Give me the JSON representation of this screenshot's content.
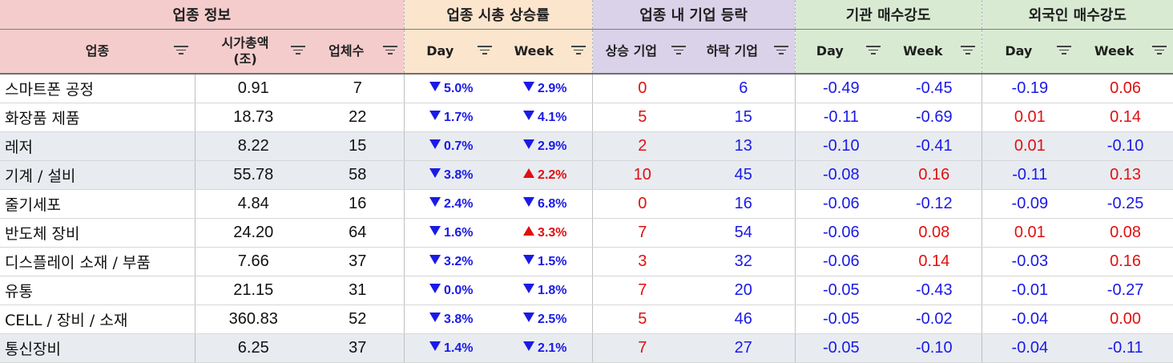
{
  "groups": {
    "info": "업종 정보",
    "mcap_change": "업종 시총 상승률",
    "companies": "업종 내 기업 등락",
    "institution": "기관 매수강도",
    "foreign": "외국인 매수강도"
  },
  "columns": {
    "sector": "업종",
    "mcap_line1": "시가총액",
    "mcap_line2": "(조)",
    "count": "업체수",
    "day": "Day",
    "week": "Week",
    "up": "상승 기업",
    "down": "하락 기업",
    "inst_day": "Day",
    "inst_week": "Week",
    "frgn_day": "Day",
    "frgn_week": "Week"
  },
  "colors": {
    "header_info": "#f4cccc",
    "header_mcap": "#fce5cd",
    "header_companies": "#d9d2e9",
    "header_institution": "#d9ead3",
    "header_foreign": "#d9ead3",
    "positive": "#e01010",
    "negative": "#1a1ae6",
    "alt_row": "#e8ecf1"
  },
  "rows": [
    {
      "sector": "스마트폰 공정",
      "mcap": "0.91",
      "count": "7",
      "day": "5.0%",
      "day_dir": "down",
      "week": "2.9%",
      "week_dir": "down",
      "up": "0",
      "down": "6",
      "inst_day": "-0.49",
      "inst_week": "-0.45",
      "frgn_day": "-0.19",
      "frgn_week": "0.06"
    },
    {
      "sector": "화장품 제품",
      "mcap": "18.73",
      "count": "22",
      "day": "1.7%",
      "day_dir": "down",
      "week": "4.1%",
      "week_dir": "down",
      "up": "5",
      "down": "15",
      "inst_day": "-0.11",
      "inst_week": "-0.69",
      "frgn_day": "0.01",
      "frgn_week": "0.14"
    },
    {
      "sector": "레저",
      "mcap": "8.22",
      "count": "15",
      "day": "0.7%",
      "day_dir": "down",
      "week": "2.9%",
      "week_dir": "down",
      "up": "2",
      "down": "13",
      "inst_day": "-0.10",
      "inst_week": "-0.41",
      "frgn_day": "0.01",
      "frgn_week": "-0.10"
    },
    {
      "sector": "기계 / 설비",
      "mcap": "55.78",
      "count": "58",
      "day": "3.8%",
      "day_dir": "down",
      "week": "2.2%",
      "week_dir": "up",
      "up": "10",
      "down": "45",
      "inst_day": "-0.08",
      "inst_week": "0.16",
      "frgn_day": "-0.11",
      "frgn_week": "0.13"
    },
    {
      "sector": "줄기세포",
      "mcap": "4.84",
      "count": "16",
      "day": "2.4%",
      "day_dir": "down",
      "week": "6.8%",
      "week_dir": "down",
      "up": "0",
      "down": "16",
      "inst_day": "-0.06",
      "inst_week": "-0.12",
      "frgn_day": "-0.09",
      "frgn_week": "-0.25"
    },
    {
      "sector": "반도체 장비",
      "mcap": "24.20",
      "count": "64",
      "day": "1.6%",
      "day_dir": "down",
      "week": "3.3%",
      "week_dir": "up",
      "up": "7",
      "down": "54",
      "inst_day": "-0.06",
      "inst_week": "0.08",
      "frgn_day": "0.01",
      "frgn_week": "0.08"
    },
    {
      "sector": "디스플레이 소재 / 부품",
      "mcap": "7.66",
      "count": "37",
      "day": "3.2%",
      "day_dir": "down",
      "week": "1.5%",
      "week_dir": "down",
      "up": "3",
      "down": "32",
      "inst_day": "-0.06",
      "inst_week": "0.14",
      "frgn_day": "-0.03",
      "frgn_week": "0.16"
    },
    {
      "sector": "유통",
      "mcap": "21.15",
      "count": "31",
      "day": "0.0%",
      "day_dir": "down",
      "week": "1.8%",
      "week_dir": "down",
      "up": "7",
      "down": "20",
      "inst_day": "-0.05",
      "inst_week": "-0.43",
      "frgn_day": "-0.01",
      "frgn_week": "-0.27"
    },
    {
      "sector": "CELL / 장비 / 소재",
      "mcap": "360.83",
      "count": "52",
      "day": "3.8%",
      "day_dir": "down",
      "week": "2.5%",
      "week_dir": "down",
      "up": "5",
      "down": "46",
      "inst_day": "-0.05",
      "inst_week": "-0.02",
      "frgn_day": "-0.04",
      "frgn_week": "0.00"
    },
    {
      "sector": "통신장비",
      "mcap": "6.25",
      "count": "37",
      "day": "1.4%",
      "day_dir": "down",
      "week": "2.1%",
      "week_dir": "down",
      "up": "7",
      "down": "27",
      "inst_day": "-0.05",
      "inst_week": "-0.10",
      "frgn_day": "-0.04",
      "frgn_week": "-0.11"
    }
  ]
}
